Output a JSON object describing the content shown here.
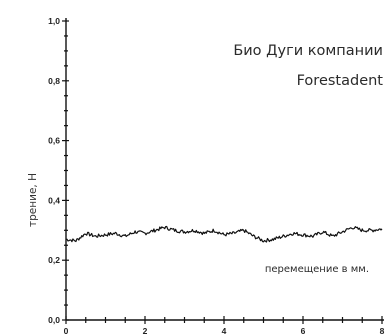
{
  "chart_data": {
    "type": "line",
    "title_lines": [
      "Био Дуги компании",
      "Forestadent"
    ],
    "annotation": "перемещение в мм.",
    "ylabel": "трение, Н",
    "xlabel": "",
    "xlim": [
      0,
      8
    ],
    "ylim": [
      0,
      1.0
    ],
    "x_ticks": [
      0,
      2,
      4,
      6,
      8
    ],
    "x_tick_labels": [
      "0",
      "2",
      "4",
      "6",
      "8"
    ],
    "y_ticks": [
      0.0,
      0.2,
      0.4,
      0.6,
      0.8,
      1.0
    ],
    "y_tick_labels": [
      "0,0",
      "0,2",
      "0,4",
      "0,6",
      "0,8",
      "1,0"
    ],
    "grid": false,
    "series": [
      {
        "color": "#111111",
        "x": [
          0,
          0.25,
          0.5,
          0.75,
          1,
          1.25,
          1.5,
          1.75,
          2,
          2.25,
          2.5,
          2.75,
          3,
          3.25,
          3.5,
          3.75,
          4,
          4.25,
          4.5,
          4.75,
          5,
          5.25,
          5.5,
          5.75,
          6,
          6.25,
          6.5,
          6.75,
          7,
          7.25,
          7.5,
          7.75,
          8
        ],
        "y": [
          0.27,
          0.265,
          0.29,
          0.28,
          0.285,
          0.29,
          0.28,
          0.295,
          0.29,
          0.3,
          0.31,
          0.3,
          0.295,
          0.3,
          0.29,
          0.3,
          0.285,
          0.29,
          0.3,
          0.28,
          0.265,
          0.27,
          0.28,
          0.29,
          0.285,
          0.28,
          0.295,
          0.28,
          0.295,
          0.31,
          0.3,
          0.3,
          0.305
        ]
      }
    ]
  }
}
